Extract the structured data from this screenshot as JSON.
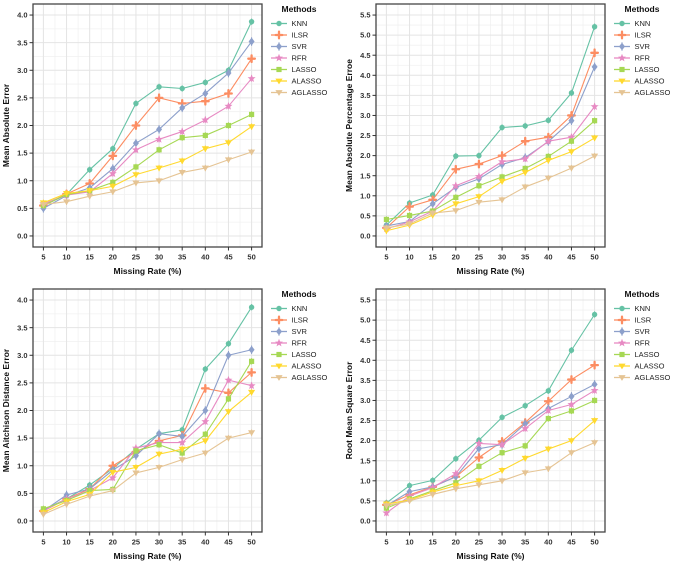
{
  "figure": {
    "background": "#ffffff",
    "grid_major_color": "#e4e4e4",
    "grid_minor_color": "#f1f1f1",
    "panel_border_color": "#454545",
    "legend_title": "Methods",
    "x_axis_title": "Missing Rate (%)"
  },
  "methods": [
    {
      "name": "KNN",
      "color": "#66c2a5",
      "marker": "circle"
    },
    {
      "name": "ILSR",
      "color": "#fc8d62",
      "marker": "plus"
    },
    {
      "name": "SVR",
      "color": "#8da0cb",
      "marker": "diamond"
    },
    {
      "name": "RFR",
      "color": "#e78ac3",
      "marker": "star"
    },
    {
      "name": "LASSO",
      "color": "#a6d854",
      "marker": "square"
    },
    {
      "name": "ALASSO",
      "color": "#ffd92f",
      "marker": "triangle-down"
    },
    {
      "name": "AGLASSO",
      "color": "#e5c494",
      "marker": "triangle-down"
    }
  ],
  "chart_data": [
    {
      "type": "line",
      "title": "",
      "xlabel": "Missing Rate (%)",
      "ylabel": "Mean Absolute Error",
      "x": [
        5,
        10,
        15,
        20,
        25,
        30,
        35,
        40,
        45,
        50
      ],
      "xlim": [
        2.75,
        52.25
      ],
      "ylim": [
        0,
        4.0
      ],
      "ytick_step": 0.5,
      "grid": true,
      "legend_position": "right",
      "series": [
        {
          "name": "KNN",
          "values": [
            0.55,
            0.75,
            1.2,
            1.58,
            2.4,
            2.7,
            2.67,
            2.78,
            3.0,
            3.88
          ]
        },
        {
          "name": "ILSR",
          "values": [
            0.55,
            0.76,
            0.95,
            1.45,
            2.0,
            2.5,
            2.4,
            2.44,
            2.58,
            3.21
          ]
        },
        {
          "name": "SVR",
          "values": [
            0.5,
            0.73,
            0.87,
            1.22,
            1.68,
            1.93,
            2.32,
            2.58,
            2.95,
            3.52
          ]
        },
        {
          "name": "RFR",
          "values": [
            0.58,
            0.74,
            0.8,
            1.13,
            1.56,
            1.75,
            1.89,
            2.1,
            2.35,
            2.85
          ]
        },
        {
          "name": "LASSO",
          "values": [
            0.55,
            0.75,
            0.82,
            0.97,
            1.25,
            1.56,
            1.78,
            1.82,
            2.0,
            2.2
          ]
        },
        {
          "name": "ALASSO",
          "values": [
            0.6,
            0.77,
            0.82,
            0.9,
            1.11,
            1.23,
            1.36,
            1.58,
            1.69,
            1.98
          ]
        },
        {
          "name": "AGLASSO",
          "values": [
            0.57,
            0.62,
            0.72,
            0.8,
            0.96,
            1.0,
            1.15,
            1.23,
            1.38,
            1.52
          ]
        }
      ]
    },
    {
      "type": "line",
      "title": "",
      "xlabel": "Missing Rate (%)",
      "ylabel": "Mean Absolute Percentage Erroe",
      "x": [
        5,
        10,
        15,
        20,
        25,
        30,
        35,
        40,
        45,
        50
      ],
      "xlim": [
        2.75,
        52.25
      ],
      "ylim": [
        0,
        5.5
      ],
      "ytick_step": 0.5,
      "grid": true,
      "legend_position": "right",
      "series": [
        {
          "name": "KNN",
          "values": [
            0.27,
            0.82,
            1.02,
            1.99,
            2.0,
            2.7,
            2.74,
            2.88,
            3.56,
            5.21
          ]
        },
        {
          "name": "ILSR",
          "values": [
            0.2,
            0.73,
            0.9,
            1.66,
            1.79,
            2.0,
            2.36,
            2.46,
            3.0,
            4.56
          ]
        },
        {
          "name": "SVR",
          "values": [
            0.25,
            0.36,
            0.8,
            1.21,
            1.42,
            1.78,
            1.95,
            2.35,
            2.87,
            4.21
          ]
        },
        {
          "name": "RFR",
          "values": [
            0.18,
            0.35,
            0.62,
            1.25,
            1.48,
            1.85,
            1.92,
            2.36,
            2.46,
            3.22
          ]
        },
        {
          "name": "LASSO",
          "values": [
            0.41,
            0.51,
            0.62,
            0.96,
            1.25,
            1.47,
            1.68,
            1.98,
            2.36,
            2.87
          ]
        },
        {
          "name": "ALASSO",
          "values": [
            0.13,
            0.27,
            0.52,
            0.8,
            0.98,
            1.36,
            1.58,
            1.88,
            2.1,
            2.44
          ]
        },
        {
          "name": "AGLASSO",
          "values": [
            0.2,
            0.3,
            0.57,
            0.63,
            0.84,
            0.9,
            1.22,
            1.44,
            1.69,
            1.99
          ]
        }
      ]
    },
    {
      "type": "line",
      "title": "",
      "xlabel": "Missing Rate (%)",
      "ylabel": "Mean Aitchison Distance Error",
      "x": [
        5,
        10,
        15,
        20,
        25,
        30,
        35,
        40,
        45,
        50
      ],
      "xlim": [
        2.75,
        52.25
      ],
      "ylim": [
        0,
        4.0
      ],
      "ytick_step": 0.5,
      "grid": true,
      "legend_position": "right",
      "series": [
        {
          "name": "KNN",
          "values": [
            0.2,
            0.4,
            0.65,
            0.95,
            1.3,
            1.58,
            1.65,
            2.75,
            3.21,
            3.87
          ]
        },
        {
          "name": "ILSR",
          "values": [
            0.18,
            0.4,
            0.58,
            1.0,
            1.25,
            1.45,
            1.55,
            2.4,
            2.32,
            2.69
          ]
        },
        {
          "name": "SVR",
          "values": [
            0.18,
            0.47,
            0.58,
            0.92,
            1.18,
            1.58,
            1.53,
            2.0,
            3.0,
            3.1
          ]
        },
        {
          "name": "RFR",
          "values": [
            0.18,
            0.4,
            0.55,
            0.78,
            1.32,
            1.42,
            1.42,
            1.8,
            2.55,
            2.45
          ]
        },
        {
          "name": "LASSO",
          "values": [
            0.22,
            0.37,
            0.55,
            0.57,
            1.27,
            1.38,
            1.23,
            1.57,
            2.21,
            2.89
          ]
        },
        {
          "name": "ALASSO",
          "values": [
            0.15,
            0.35,
            0.48,
            0.88,
            0.97,
            1.21,
            1.3,
            1.45,
            1.98,
            2.33
          ]
        },
        {
          "name": "AGLASSO",
          "values": [
            0.12,
            0.3,
            0.45,
            0.55,
            0.87,
            0.97,
            1.11,
            1.23,
            1.5,
            1.6
          ]
        }
      ]
    },
    {
      "type": "line",
      "title": "",
      "xlabel": "Missing Rate (%)",
      "ylabel": "Root Mean Square Error",
      "x": [
        5,
        10,
        15,
        20,
        25,
        30,
        35,
        40,
        45,
        50
      ],
      "xlim": [
        2.75,
        52.25
      ],
      "ylim": [
        0,
        5.5
      ],
      "ytick_step": 0.5,
      "grid": true,
      "legend_position": "right",
      "series": [
        {
          "name": "KNN",
          "values": [
            0.45,
            0.88,
            1.01,
            1.55,
            2.01,
            2.58,
            2.87,
            3.24,
            4.25,
            5.14
          ]
        },
        {
          "name": "ILSR",
          "values": [
            0.4,
            0.65,
            0.85,
            1.1,
            1.58,
            1.98,
            2.45,
            2.98,
            3.52,
            3.88
          ]
        },
        {
          "name": "SVR",
          "values": [
            0.38,
            0.73,
            0.85,
            1.1,
            1.8,
            1.9,
            2.42,
            2.8,
            3.1,
            3.4
          ]
        },
        {
          "name": "RFR",
          "values": [
            0.2,
            0.62,
            0.83,
            1.18,
            1.93,
            1.9,
            2.3,
            2.75,
            2.9,
            3.25
          ]
        },
        {
          "name": "LASSO",
          "values": [
            0.32,
            0.55,
            0.75,
            0.95,
            1.36,
            1.7,
            1.87,
            2.55,
            2.74,
            3.0
          ]
        },
        {
          "name": "ALASSO",
          "values": [
            0.42,
            0.52,
            0.72,
            0.88,
            1.0,
            1.26,
            1.56,
            1.79,
            2.0,
            2.5
          ]
        },
        {
          "name": "AGLASSO",
          "values": [
            0.38,
            0.5,
            0.66,
            0.8,
            0.9,
            1.0,
            1.2,
            1.3,
            1.7,
            1.95
          ]
        }
      ]
    }
  ]
}
